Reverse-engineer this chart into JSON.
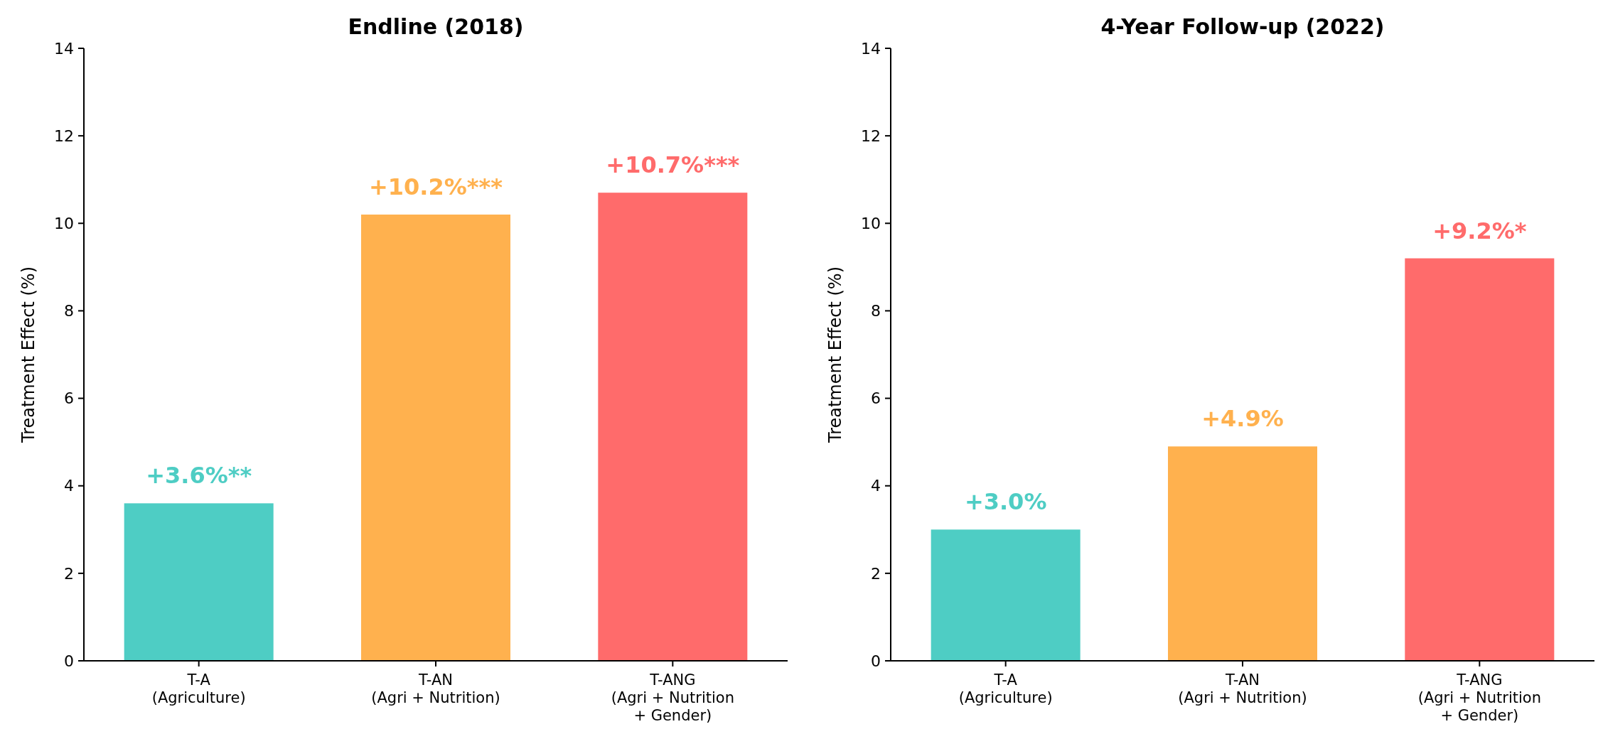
{
  "chart_data": [
    {
      "type": "bar",
      "title": "Endline (2018)",
      "ylabel": "Treatment Effect (%)",
      "categories": [
        "T-A\n(Agriculture)",
        "T-AN\n(Agri + Nutrition)",
        "T-ANG\n(Agri + Nutrition\n+ Gender)"
      ],
      "values": [
        3.6,
        10.2,
        10.7
      ],
      "colors": [
        "#4ecdc4",
        "#ffb14e",
        "#ff6b6b"
      ],
      "value_labels": [
        "+3.6%**",
        "+10.2%***",
        "+10.7%***"
      ],
      "ylim": [
        0,
        14
      ],
      "yticks": [
        0,
        2,
        4,
        6,
        8,
        10,
        12,
        14
      ],
      "grid": false
    },
    {
      "type": "bar",
      "title": "4-Year Follow-up (2022)",
      "ylabel": "Treatment Effect (%)",
      "categories": [
        "T-A\n(Agriculture)",
        "T-AN\n(Agri + Nutrition)",
        "T-ANG\n(Agri + Nutrition\n+ Gender)"
      ],
      "values": [
        3.0,
        4.9,
        9.2
      ],
      "colors": [
        "#4ecdc4",
        "#ffb14e",
        "#ff6b6b"
      ],
      "value_labels": [
        "+3.0%",
        "+4.9%",
        "+9.2%*"
      ],
      "ylim": [
        0,
        14
      ],
      "yticks": [
        0,
        2,
        4,
        6,
        8,
        10,
        12,
        14
      ],
      "grid": false
    }
  ]
}
